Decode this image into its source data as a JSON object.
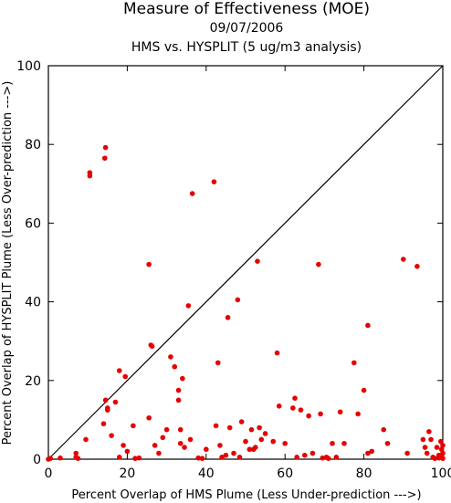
{
  "chart_data": {
    "type": "scatter",
    "title": "Measure of Effectiveness (MOE)",
    "subtitle_date": "09/07/2006",
    "subtitle_analysis": "HMS vs. HYSPLIT  (5 ug/m3 analysis)",
    "xlabel": "Percent Overlap of HMS Plume (Less Under-prediction --->)",
    "ylabel": "Percent Overlap of HYSPLIT Plume (Less Over-prediction --->)",
    "xlim": [
      0,
      100
    ],
    "ylim": [
      0,
      100
    ],
    "x_ticks": [
      "0",
      "20",
      "40",
      "60",
      "80",
      "100"
    ],
    "y_ticks": [
      "0",
      "20",
      "40",
      "60",
      "80",
      "100"
    ],
    "diagonal_line": true,
    "grid": false,
    "point_color": "#e60000",
    "points": [
      [
        0,
        0
      ],
      [
        0.5,
        0.2
      ],
      [
        3,
        0.3
      ],
      [
        7,
        1.5
      ],
      [
        7,
        0.5
      ],
      [
        7.5,
        0.2
      ],
      [
        9.5,
        5
      ],
      [
        10.5,
        72.8
      ],
      [
        10.5,
        72
      ],
      [
        14.5,
        79.2
      ],
      [
        14.3,
        76.5
      ],
      [
        14,
        9
      ],
      [
        14.5,
        15
      ],
      [
        15,
        12.5
      ],
      [
        15,
        13
      ],
      [
        16,
        6
      ],
      [
        17,
        14.5
      ],
      [
        18,
        22.5
      ],
      [
        18,
        0.5
      ],
      [
        19,
        3.5
      ],
      [
        19.5,
        21
      ],
      [
        20,
        2
      ],
      [
        21.5,
        8.5
      ],
      [
        22,
        0.2
      ],
      [
        23,
        0.3
      ],
      [
        25.5,
        10.5
      ],
      [
        25.5,
        49.5
      ],
      [
        26,
        29
      ],
      [
        26.3,
        28.7
      ],
      [
        27,
        3.5
      ],
      [
        28,
        1.5
      ],
      [
        29,
        5.5
      ],
      [
        30,
        7.5
      ],
      [
        31,
        26
      ],
      [
        32,
        23.5
      ],
      [
        33,
        15
      ],
      [
        33,
        17.5
      ],
      [
        33.5,
        7.5
      ],
      [
        33.5,
        4
      ],
      [
        34,
        20.5
      ],
      [
        34.5,
        3
      ],
      [
        35.5,
        39
      ],
      [
        36,
        5
      ],
      [
        36.5,
        67.5
      ],
      [
        38,
        0.3
      ],
      [
        39,
        0.2
      ],
      [
        40,
        2.5
      ],
      [
        42,
        70.5
      ],
      [
        42.5,
        8.5
      ],
      [
        43,
        24.5
      ],
      [
        43.5,
        3.5
      ],
      [
        44,
        0.5
      ],
      [
        45,
        1
      ],
      [
        45.5,
        36
      ],
      [
        46,
        8
      ],
      [
        47,
        1.5
      ],
      [
        48,
        40.5
      ],
      [
        48.5,
        0.5
      ],
      [
        49,
        9.5
      ],
      [
        50,
        4.5
      ],
      [
        51,
        2.5
      ],
      [
        51.5,
        7.5
      ],
      [
        52,
        2.5
      ],
      [
        52.5,
        3
      ],
      [
        53,
        50.3
      ],
      [
        53.5,
        8
      ],
      [
        54,
        5
      ],
      [
        55,
        6.5
      ],
      [
        57,
        4.5
      ],
      [
        58,
        27
      ],
      [
        58.5,
        13.5
      ],
      [
        60,
        4
      ],
      [
        62,
        13
      ],
      [
        62.5,
        15.5
      ],
      [
        63,
        0.5
      ],
      [
        64,
        12.5
      ],
      [
        65,
        1
      ],
      [
        66,
        11
      ],
      [
        67,
        1.5
      ],
      [
        68.5,
        49.5
      ],
      [
        69,
        11.5
      ],
      [
        69.5,
        0.3
      ],
      [
        70.5,
        0.5
      ],
      [
        71,
        0.2
      ],
      [
        72,
        4
      ],
      [
        73,
        0.5
      ],
      [
        74,
        12
      ],
      [
        75,
        4
      ],
      [
        77.5,
        24.5
      ],
      [
        78.5,
        11.5
      ],
      [
        80,
        17.5
      ],
      [
        81,
        1.5
      ],
      [
        81,
        34
      ],
      [
        82,
        2
      ],
      [
        85,
        7.5
      ],
      [
        86,
        4
      ],
      [
        90,
        50.8
      ],
      [
        91,
        1.5
      ],
      [
        93.5,
        49
      ],
      [
        95,
        5
      ],
      [
        95.5,
        3
      ],
      [
        96,
        1.5
      ],
      [
        96.5,
        7
      ],
      [
        97,
        5
      ],
      [
        97.5,
        0.5
      ],
      [
        98,
        0.2
      ],
      [
        98.5,
        3
      ],
      [
        99,
        1
      ],
      [
        99.5,
        4.5
      ],
      [
        99.7,
        2.5
      ],
      [
        99.8,
        0.5
      ],
      [
        100,
        1.5
      ],
      [
        100,
        3.5
      ],
      [
        100,
        0.2
      ],
      [
        99,
        0.3
      ]
    ]
  }
}
